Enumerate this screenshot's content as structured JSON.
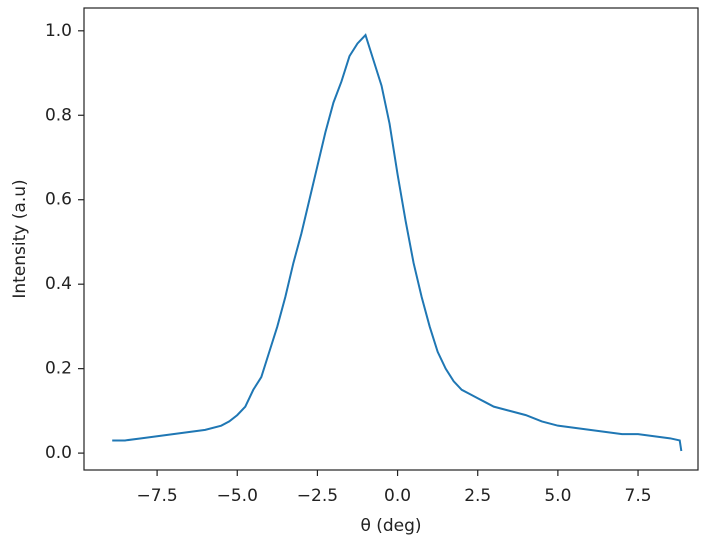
{
  "chart_data": {
    "type": "line",
    "x_label": "θ (deg)",
    "y_label": "Intensity (a.u)",
    "x": [
      -8.9,
      -8.5,
      -8.0,
      -7.5,
      -7.0,
      -6.5,
      -6.0,
      -5.5,
      -5.25,
      -5.0,
      -4.75,
      -4.5,
      -4.25,
      -4.0,
      -3.75,
      -3.5,
      -3.25,
      -3.0,
      -2.75,
      -2.5,
      -2.25,
      -2.0,
      -1.75,
      -1.5,
      -1.25,
      -1.0,
      -0.75,
      -0.5,
      -0.25,
      0.0,
      0.25,
      0.5,
      0.75,
      1.0,
      1.25,
      1.5,
      1.75,
      2.0,
      2.25,
      2.5,
      2.75,
      3.0,
      3.5,
      4.0,
      4.5,
      5.0,
      5.5,
      6.0,
      6.5,
      7.0,
      7.5,
      8.0,
      8.5,
      8.8,
      8.85
    ],
    "series": [
      {
        "color": "#1f77b4",
        "values": [
          0.03,
          0.03,
          0.035,
          0.04,
          0.045,
          0.05,
          0.055,
          0.065,
          0.075,
          0.09,
          0.11,
          0.15,
          0.18,
          0.24,
          0.3,
          0.37,
          0.45,
          0.52,
          0.6,
          0.68,
          0.76,
          0.83,
          0.88,
          0.94,
          0.97,
          0.99,
          0.93,
          0.87,
          0.78,
          0.66,
          0.55,
          0.45,
          0.37,
          0.3,
          0.24,
          0.2,
          0.17,
          0.15,
          0.14,
          0.13,
          0.12,
          0.11,
          0.1,
          0.09,
          0.075,
          0.065,
          0.06,
          0.055,
          0.05,
          0.045,
          0.045,
          0.04,
          0.035,
          0.03,
          0.005
        ]
      }
    ],
    "xlim": [
      -9.78,
      9.37
    ],
    "xticks": [
      {
        "value": -7.5,
        "label": "−7.5"
      },
      {
        "value": -5.0,
        "label": "−5.0"
      },
      {
        "value": -2.5,
        "label": "−2.5"
      },
      {
        "value": 0.0,
        "label": "0.0"
      },
      {
        "value": 2.5,
        "label": "2.5"
      },
      {
        "value": 5.0,
        "label": "5.0"
      },
      {
        "value": 7.5,
        "label": "7.5"
      }
    ],
    "ylim": [
      -0.04,
      1.054
    ],
    "yticks": [
      {
        "value": 0.0,
        "label": "0.0"
      },
      {
        "value": 0.2,
        "label": "0.2"
      },
      {
        "value": 0.4,
        "label": "0.4"
      },
      {
        "value": 0.6,
        "label": "0.6"
      },
      {
        "value": 0.8,
        "label": "0.8"
      },
      {
        "value": 1.0,
        "label": "1.0"
      }
    ]
  }
}
